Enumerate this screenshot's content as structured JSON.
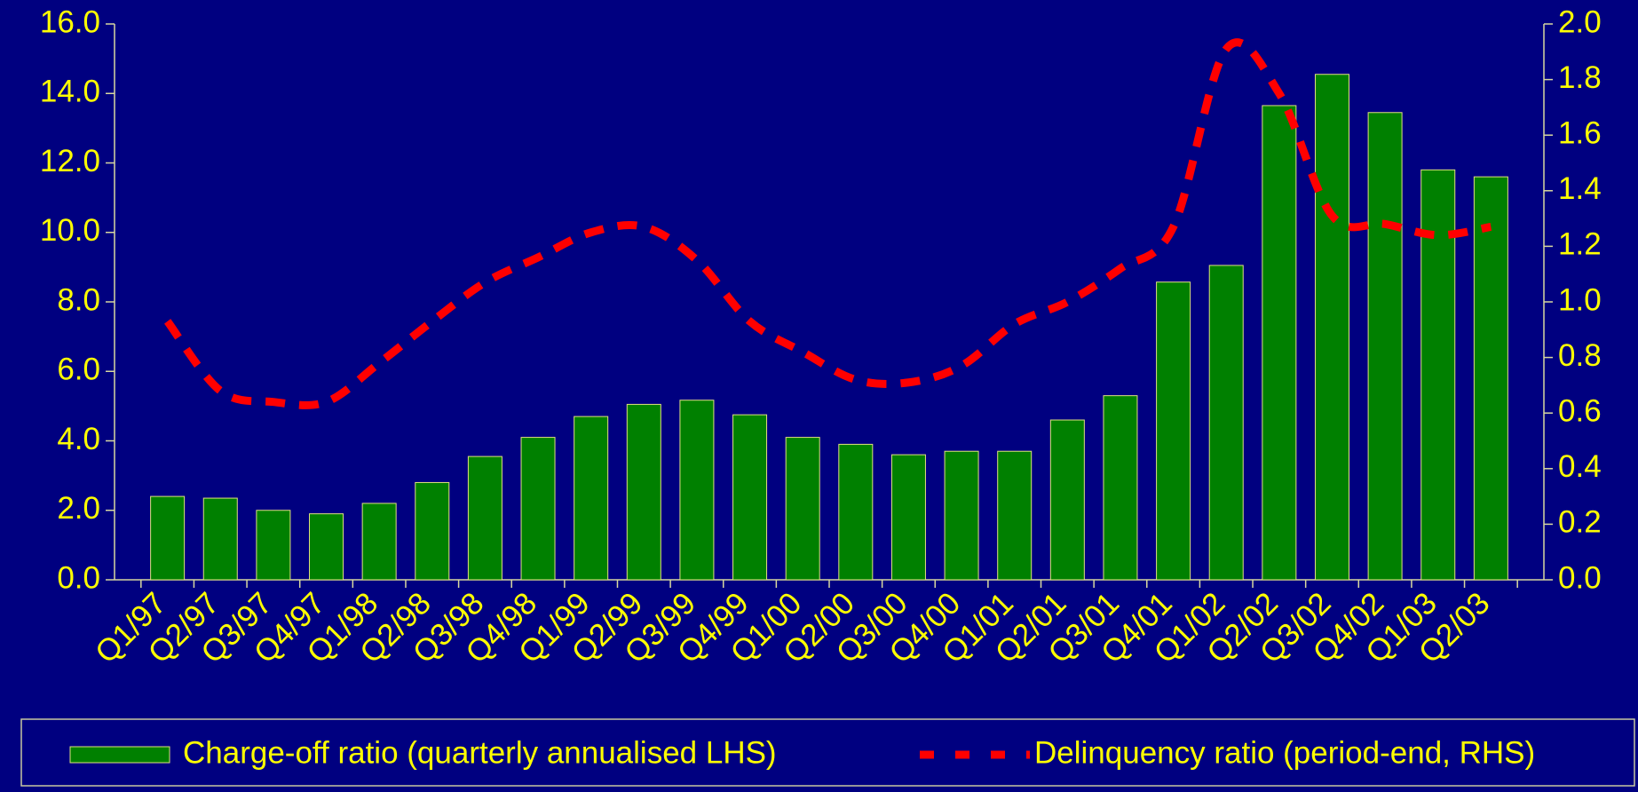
{
  "chart_data": {
    "type": "bar_line",
    "categories": [
      "Q1/97",
      "Q2/97",
      "Q3/97",
      "Q4/97",
      "Q1/98",
      "Q2/98",
      "Q3/98",
      "Q4/98",
      "Q1/99",
      "Q2/99",
      "Q3/99",
      "Q4/99",
      "Q1/00",
      "Q2/00",
      "Q3/00",
      "Q4/00",
      "Q1/01",
      "Q2/01",
      "Q3/01",
      "Q4/01",
      "Q1/02",
      "Q2/02",
      "Q3/02",
      "Q4/02",
      "Q1/03",
      "Q2/03"
    ],
    "series": [
      {
        "name": "Charge-off ratio (quarterly annualised LHS)",
        "type": "bar",
        "color": "#008000",
        "values": [
          2.4,
          2.35,
          2.0,
          1.9,
          2.2,
          2.8,
          3.55,
          4.1,
          4.7,
          5.05,
          5.17,
          4.75,
          4.1,
          3.9,
          3.6,
          3.7,
          3.7,
          4.6,
          5.3,
          8.57,
          9.05,
          13.65,
          14.55,
          13.45,
          11.8,
          11.6
        ]
      },
      {
        "name": "Delinquency ratio (period-end, RHS)",
        "type": "line",
        "axis": "y2",
        "color": "#ff0000",
        "values": [
          0.93,
          0.68,
          0.64,
          0.64,
          0.78,
          0.93,
          1.07,
          1.16,
          1.25,
          1.27,
          1.15,
          0.93,
          0.82,
          0.72,
          0.71,
          0.77,
          0.92,
          1.0,
          1.12,
          1.27,
          1.91,
          1.75,
          1.31,
          1.28,
          1.24,
          1.27
        ]
      }
    ],
    "ylim": [
      0,
      16
    ],
    "yticks": [
      {
        "value": 0,
        "label": "0.0"
      },
      {
        "value": 2,
        "label": "2.0"
      },
      {
        "value": 4,
        "label": "4.0"
      },
      {
        "value": 6,
        "label": "6.0"
      },
      {
        "value": 8,
        "label": "8.0"
      },
      {
        "value": 10,
        "label": "10.0"
      },
      {
        "value": 12,
        "label": "12.0"
      },
      {
        "value": 14,
        "label": "14.0"
      },
      {
        "value": 16,
        "label": "16.0"
      }
    ],
    "y2lim": [
      0,
      2
    ],
    "y2ticks": [
      {
        "value": 0,
        "label": "0.0"
      },
      {
        "value": 0.2,
        "label": "0.2"
      },
      {
        "value": 0.4,
        "label": "0.4"
      },
      {
        "value": 0.6,
        "label": "0.6"
      },
      {
        "value": 0.8,
        "label": "0.8"
      },
      {
        "value": 1,
        "label": "1.0"
      },
      {
        "value": 1.2,
        "label": "1.2"
      },
      {
        "value": 1.4,
        "label": "1.4"
      },
      {
        "value": 1.6,
        "label": "1.6"
      },
      {
        "value": 1.8,
        "label": "1.8"
      },
      {
        "value": 2,
        "label": "2.0"
      }
    ],
    "legend": "bottom"
  }
}
